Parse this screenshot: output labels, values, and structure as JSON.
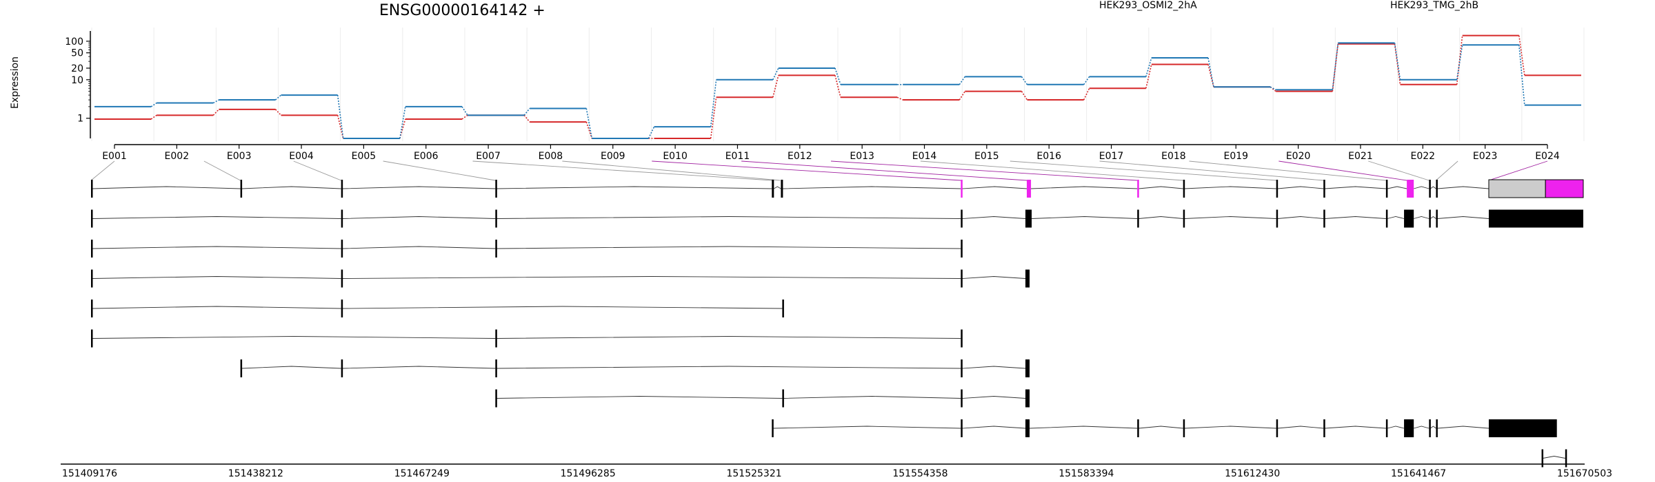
{
  "chart_data": {
    "type": "line",
    "title": "ENSG00000164142 +",
    "ylabel": "Expression",
    "yscale": "log",
    "yticks": [
      1,
      10,
      20,
      50,
      100
    ],
    "ytick_labels": [
      "1",
      "10",
      "20",
      "50",
      "100"
    ],
    "categories": [
      "E001",
      "E002",
      "E003",
      "E004",
      "E005",
      "E006",
      "E007",
      "E008",
      "E009",
      "E010",
      "E011",
      "E012",
      "E013",
      "E014",
      "E015",
      "E016",
      "E017",
      "E018",
      "E019",
      "E020",
      "E021",
      "E022",
      "E023",
      "E024"
    ],
    "series": [
      {
        "name": "HEK293_OSMI2_2hA",
        "color": "#d62728",
        "values": [
          0.95,
          1.2,
          1.7,
          1.2,
          0.3,
          0.95,
          1.2,
          0.8,
          0.3,
          0.3,
          3.5,
          13,
          3.5,
          3,
          5,
          3,
          6,
          25,
          6.5,
          5,
          85,
          7.5,
          140,
          13
        ]
      },
      {
        "name": "HEK293_TMG_2hB",
        "color": "#1f77b4",
        "values": [
          2,
          2.5,
          3,
          4,
          0.3,
          2,
          1.2,
          1.8,
          0.3,
          0.6,
          10,
          20,
          7.5,
          7.5,
          12,
          7.5,
          12,
          37,
          6.5,
          5.5,
          90,
          10,
          80,
          2.2
        ]
      }
    ],
    "genomic_ticks": [
      "151409176",
      "151438212",
      "151467249",
      "151496285",
      "151525321",
      "151554358",
      "151583394",
      "151612430",
      "151641467",
      "151670503"
    ],
    "exon_bins": [
      [
        0,
        0.5
      ],
      [
        107.5,
        108
      ],
      [
        180,
        180.5
      ],
      [
        291,
        291.5
      ],
      [
        490,
        492
      ],
      [
        496,
        497
      ],
      [
        626,
        627
      ],
      [
        673.5,
        677
      ],
      [
        753,
        754
      ],
      [
        786,
        787
      ],
      [
        853.5,
        854.5
      ],
      [
        887,
        888
      ],
      [
        932,
        933
      ],
      [
        947,
        956
      ],
      [
        963,
        964
      ],
      [
        968,
        969
      ],
      [
        1006,
        1075
      ]
    ],
    "highlight_bins": [
      626,
      673.5,
      753,
      947,
      1006
    ],
    "transcripts": [
      {
        "exons": [
          [
            0,
            1
          ],
          [
            107.5,
            108.5
          ],
          [
            180,
            181
          ],
          [
            291,
            292
          ],
          [
            490,
            491.5
          ],
          [
            496.5,
            498
          ],
          [
            626,
            627
          ],
          [
            673.5,
            676.5
          ],
          [
            753,
            754
          ],
          [
            786,
            787
          ],
          [
            853,
            854
          ],
          [
            887,
            888
          ],
          [
            932,
            933
          ],
          [
            947,
            952
          ],
          [
            963,
            964
          ],
          [
            968,
            969
          ],
          [
            1006,
            1074
          ]
        ],
        "thick": false
      },
      {
        "exons": [
          [
            0,
            1
          ],
          [
            180,
            181
          ],
          [
            291,
            292
          ],
          [
            626,
            627
          ],
          [
            672.5,
            677
          ],
          [
            753,
            754
          ],
          [
            786,
            787
          ],
          [
            853,
            854
          ],
          [
            887,
            888
          ],
          [
            932,
            933
          ],
          [
            945,
            952
          ],
          [
            963,
            964
          ],
          [
            968,
            969
          ],
          [
            1006,
            1074
          ]
        ],
        "thick": true
      },
      {
        "exons": [
          [
            0,
            1
          ],
          [
            180,
            181
          ],
          [
            291,
            292
          ],
          [
            626,
            627
          ]
        ],
        "thick": true
      },
      {
        "exons": [
          [
            0,
            1
          ],
          [
            180,
            181
          ],
          [
            626,
            627
          ],
          [
            672.5,
            675.5
          ]
        ],
        "thick": true
      },
      {
        "exons": [
          [
            0,
            1
          ],
          [
            180,
            181
          ],
          [
            497.5,
            498.5
          ]
        ],
        "thick": true
      },
      {
        "exons": [
          [
            0,
            1
          ],
          [
            291,
            292
          ],
          [
            626,
            627
          ]
        ],
        "thick": true
      },
      {
        "exons": [
          [
            107.5,
            108.5
          ],
          [
            180,
            181
          ],
          [
            291,
            292
          ],
          [
            626,
            627
          ],
          [
            672.5,
            675.5
          ]
        ],
        "thick": true
      },
      {
        "exons": [
          [
            291,
            292
          ],
          [
            497.5,
            498.5
          ],
          [
            626,
            627
          ],
          [
            672.5,
            675.5
          ]
        ],
        "thick": true
      },
      {
        "exons": [
          [
            490,
            491
          ],
          [
            626,
            627
          ],
          [
            672.5,
            675.5
          ],
          [
            753,
            754
          ],
          [
            786,
            787
          ],
          [
            853,
            854
          ],
          [
            887,
            888
          ],
          [
            932,
            933
          ],
          [
            945,
            952
          ],
          [
            963,
            964
          ],
          [
            968,
            969
          ],
          [
            1006,
            1055
          ]
        ],
        "thick": true
      },
      {
        "exons": [
          [
            1044,
            1045
          ],
          [
            1061,
            1062
          ]
        ],
        "thick": false
      }
    ]
  }
}
